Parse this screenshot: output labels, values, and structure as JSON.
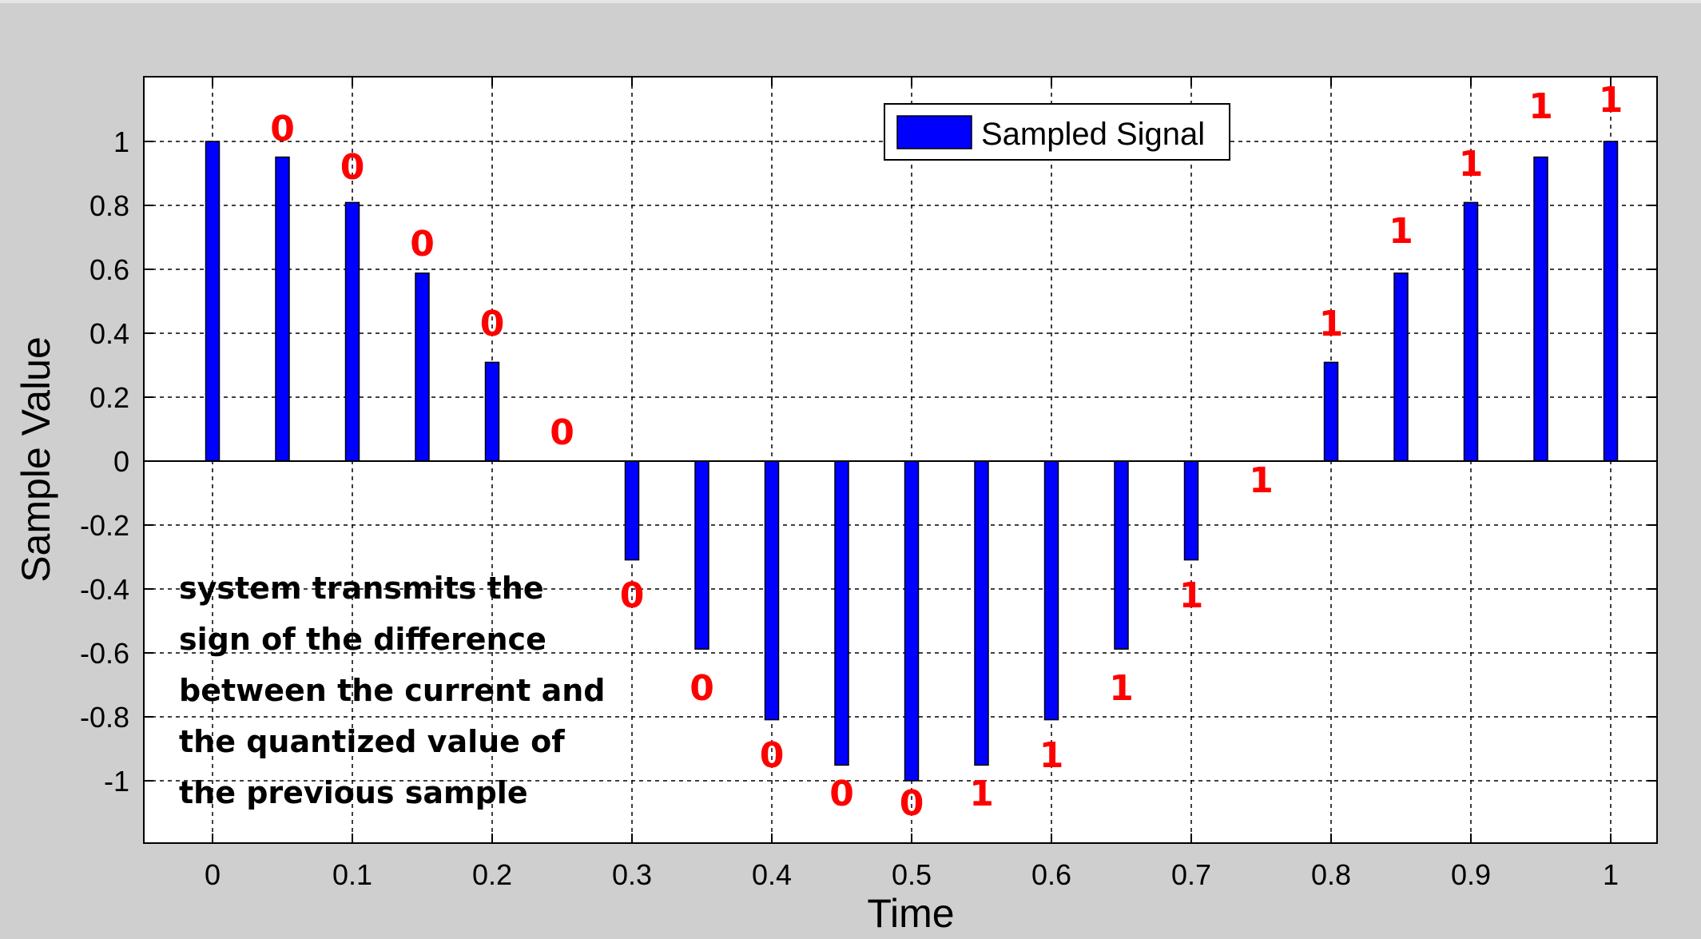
{
  "chart_data": {
    "type": "bar",
    "xlabel": "Time",
    "ylabel": "Sample Value",
    "xlim": [
      -0.05,
      1.03
    ],
    "ylim": [
      -1.2,
      1.2
    ],
    "x_ticks": [
      0,
      0.1,
      0.2,
      0.3,
      0.4,
      0.5,
      0.6,
      0.7,
      0.8,
      0.9,
      1
    ],
    "x_tick_labels": [
      "0",
      "0.1",
      "0.2",
      "0.3",
      "0.4",
      "0.5",
      "0.6",
      "0.7",
      "0.8",
      "0.9",
      "1"
    ],
    "y_ticks": [
      1,
      0.8,
      0.6,
      0.4,
      0.2,
      0,
      -0.2,
      -0.4,
      -0.6,
      -0.8,
      -1
    ],
    "y_tick_labels": [
      "1",
      "0.8",
      "0.6",
      "0.4",
      "0.2",
      "0",
      "-0.2",
      "-0.4",
      "-0.6",
      "-0.8",
      "-1"
    ],
    "grid": true,
    "legend": {
      "placement": "top-center",
      "entries": [
        "Sampled Signal"
      ]
    },
    "series": [
      {
        "name": "Sampled Signal",
        "color": "#0000ff",
        "x": [
          0,
          0.05,
          0.1,
          0.15,
          0.2,
          0.25,
          0.3,
          0.35,
          0.4,
          0.45,
          0.5,
          0.55,
          0.6,
          0.65,
          0.7,
          0.75,
          0.8,
          0.85,
          0.9,
          0.95,
          1
        ],
        "values": [
          1,
          0.951,
          0.809,
          0.588,
          0.309,
          0,
          -0.309,
          -0.588,
          -0.809,
          -0.951,
          -1,
          -0.951,
          -0.809,
          -0.588,
          -0.309,
          0,
          0.309,
          0.588,
          0.809,
          0.951,
          1
        ]
      }
    ],
    "bit_labels": {
      "color": "#ff0000",
      "points": [
        {
          "text": "0",
          "x": 0.05,
          "y": 1.04
        },
        {
          "text": "0",
          "x": 0.1,
          "y": 0.92
        },
        {
          "text": "0",
          "x": 0.15,
          "y": 0.68
        },
        {
          "text": "0",
          "x": 0.2,
          "y": 0.43
        },
        {
          "text": "0",
          "x": 0.25,
          "y": 0.09
        },
        {
          "text": "0",
          "x": 0.3,
          "y": -0.42
        },
        {
          "text": "0",
          "x": 0.35,
          "y": -0.71
        },
        {
          "text": "0",
          "x": 0.4,
          "y": -0.92
        },
        {
          "text": "0",
          "x": 0.45,
          "y": -1.04
        },
        {
          "text": "0",
          "x": 0.5,
          "y": -1.07
        },
        {
          "text": "1",
          "x": 0.55,
          "y": -1.04
        },
        {
          "text": "1",
          "x": 0.6,
          "y": -0.92
        },
        {
          "text": "1",
          "x": 0.65,
          "y": -0.71
        },
        {
          "text": "1",
          "x": 0.7,
          "y": -0.42
        },
        {
          "text": "1",
          "x": 0.75,
          "y": -0.06
        },
        {
          "text": "1",
          "x": 0.8,
          "y": 0.43
        },
        {
          "text": "1",
          "x": 0.85,
          "y": 0.72
        },
        {
          "text": "1",
          "x": 0.9,
          "y": 0.93
        },
        {
          "text": "1",
          "x": 0.95,
          "y": 1.11
        },
        {
          "text": "1",
          "x": 1.0,
          "y": 1.13
        }
      ]
    },
    "annotation": {
      "color": "#000000",
      "lines": [
        "system transmits the",
        "sign of the difference",
        "between the current and",
        "the quantized value of",
        "the previous sample"
      ]
    }
  }
}
